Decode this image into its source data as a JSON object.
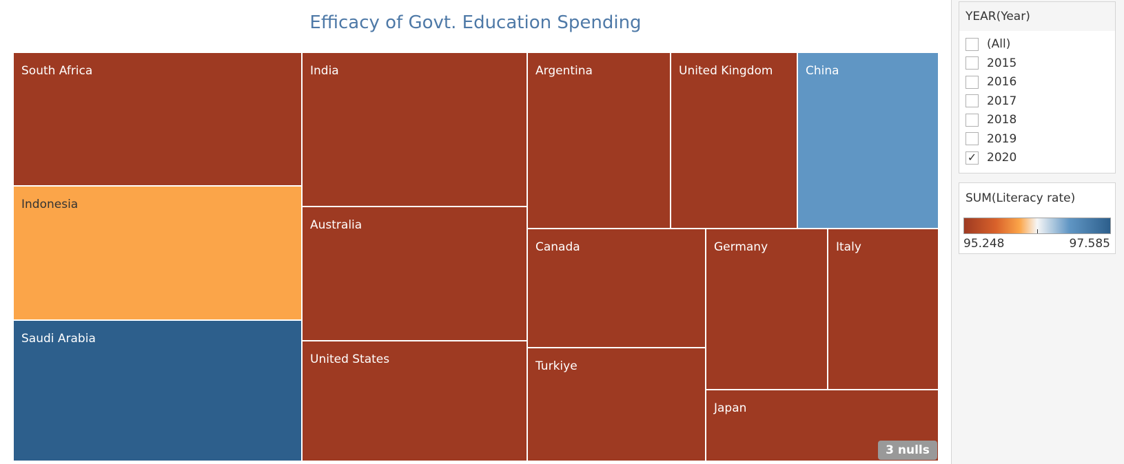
{
  "title": "Efficacy of Govt. Education Spending",
  "colors": {
    "low": "#9e3a22",
    "mid_low": "#fba549",
    "high": "#2d5f8c",
    "mid_high": "#6096c4",
    "title": "#4e79a7"
  },
  "chart_data": {
    "type": "treemap",
    "title": "Efficacy of Govt. Education Spending",
    "color_measure": "SUM(Literacy rate)",
    "color_range": [
      95.248,
      97.585
    ],
    "tiles": [
      {
        "label": "South Africa",
        "color": "#9e3a22"
      },
      {
        "label": "Indonesia",
        "color": "#fba549"
      },
      {
        "label": "Saudi Arabia",
        "color": "#2d5f8c"
      },
      {
        "label": "India",
        "color": "#9e3a22"
      },
      {
        "label": "Australia",
        "color": "#9e3a22"
      },
      {
        "label": "United States",
        "color": "#9e3a22"
      },
      {
        "label": "Argentina",
        "color": "#9e3a22"
      },
      {
        "label": "United Kingdom",
        "color": "#9e3a22"
      },
      {
        "label": "China",
        "color": "#6096c4"
      },
      {
        "label": "Canada",
        "color": "#9e3a22"
      },
      {
        "label": "Turkiye",
        "color": "#9e3a22"
      },
      {
        "label": "Germany",
        "color": "#9e3a22"
      },
      {
        "label": "Italy",
        "color": "#9e3a22"
      },
      {
        "label": "Japan",
        "color": "#9e3a22"
      }
    ],
    "nulls_label": "3 nulls"
  },
  "filter": {
    "title": "YEAR(Year)",
    "options": [
      {
        "label": "(All)",
        "checked": false
      },
      {
        "label": "2015",
        "checked": false
      },
      {
        "label": "2016",
        "checked": false
      },
      {
        "label": "2017",
        "checked": false
      },
      {
        "label": "2018",
        "checked": false
      },
      {
        "label": "2019",
        "checked": false
      },
      {
        "label": "2020",
        "checked": true
      }
    ]
  },
  "legend": {
    "title": "SUM(Literacy rate)",
    "min_label": "95.248",
    "max_label": "97.585"
  }
}
